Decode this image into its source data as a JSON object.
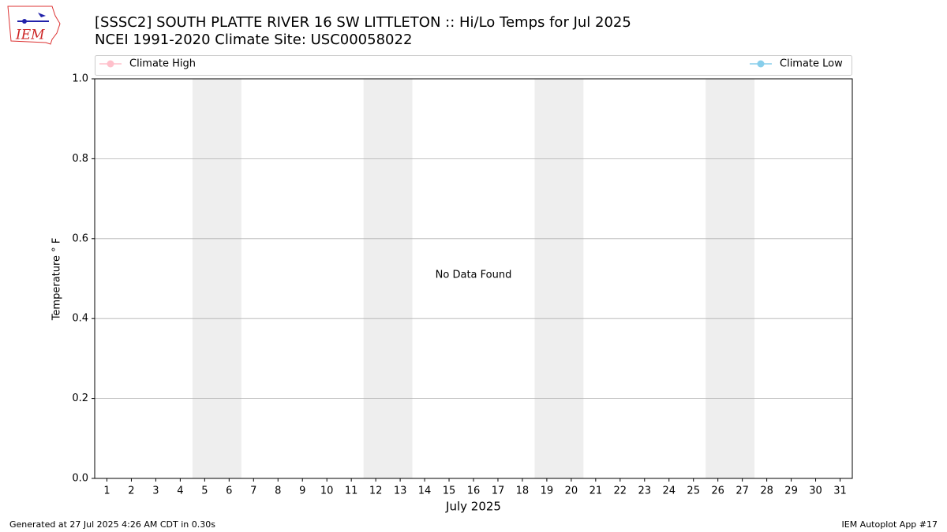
{
  "logo_text": "IEM",
  "chart_data": {
    "type": "line",
    "title": "[SSSC2] SOUTH PLATTE RIVER 16 SW LITTLETON :: Hi/Lo Temps for Jul 2025",
    "subtitle": "NCEI 1991-2020 Climate Site: USC00058022",
    "x_label": "July 2025",
    "y_label": "Temperature ° F",
    "annotation": "No Data Found",
    "footer_left": "Generated at 27 Jul 2025 4:26 AM CDT in 0.30s",
    "footer_right": "IEM Autoplot App #17",
    "x": [],
    "series": [
      {
        "name": "Climate High",
        "color": "#ffc0cb",
        "values": []
      },
      {
        "name": "Climate Low",
        "color": "#87ceeb",
        "values": []
      }
    ],
    "xlim": [
      0.5,
      31.5
    ],
    "xticks": [
      1,
      2,
      3,
      4,
      5,
      6,
      7,
      8,
      9,
      10,
      11,
      12,
      13,
      14,
      15,
      16,
      17,
      18,
      19,
      20,
      21,
      22,
      23,
      24,
      25,
      26,
      27,
      28,
      29,
      30,
      31
    ],
    "ylim": [
      0,
      1
    ],
    "yticks": [
      {
        "value": 0,
        "label": "0.0"
      },
      0.2,
      0.4,
      0.6,
      0.8,
      {
        "value": 1,
        "label": "1.0"
      }
    ],
    "grid": true,
    "shaded_spans": [
      [
        4.5,
        6.5
      ],
      [
        11.5,
        13.5
      ],
      [
        18.5,
        20.5
      ],
      [
        25.5,
        27.5
      ]
    ],
    "shade_color": "#eeeeee"
  }
}
